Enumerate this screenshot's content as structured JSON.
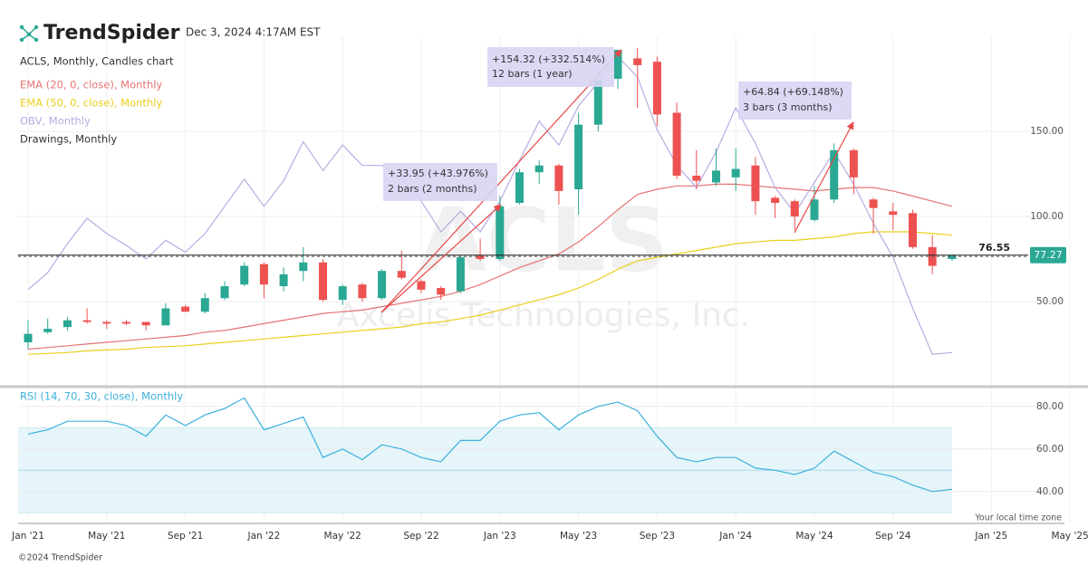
{
  "header": {
    "brand": "TrendSpider",
    "timestamp": "Dec 3, 2024 4:17AM EST"
  },
  "chart_data": [
    {
      "type": "candlestick",
      "title": "ACLS, Monthly, Candles chart",
      "watermark": "ACLS",
      "watermark_subtitle": "Axcelis Technologies, Inc.",
      "drawings_label": "Drawings, Monthly",
      "categories": [
        "Jan '21",
        null,
        null,
        null,
        "May '21",
        null,
        null,
        null,
        "Sep '21",
        null,
        null,
        null,
        "Jan '22",
        null,
        null,
        null,
        "May '22",
        null,
        null,
        null,
        "Sep '22",
        null,
        null,
        null,
        "Jan '23",
        null,
        null,
        null,
        "May '23",
        null,
        null,
        null,
        "Sep '23",
        null,
        null,
        null,
        "Jan '24",
        null,
        null,
        null,
        "May '24",
        null,
        null,
        null,
        "Sep '24",
        null,
        null,
        null
      ],
      "xticks_after": [
        "Jan '25",
        "May '25"
      ],
      "open": [
        26,
        32,
        35,
        39,
        38,
        38,
        38,
        36,
        47,
        44,
        52,
        60,
        72,
        59,
        68,
        73,
        51,
        60,
        52,
        68,
        62,
        58,
        56,
        77,
        75,
        108,
        126,
        130,
        116,
        154,
        181,
        193,
        191,
        161,
        124,
        120,
        123,
        130,
        111,
        109,
        98,
        110,
        139,
        110,
        103,
        102,
        82,
        75
      ],
      "high": [
        39,
        40,
        41,
        46,
        39,
        39,
        38,
        49,
        48,
        55,
        62,
        73,
        73,
        70,
        82,
        75,
        60,
        61,
        69,
        80,
        63,
        59,
        77,
        87,
        112,
        128,
        133,
        131,
        161,
        186,
        198,
        199,
        194,
        167,
        139,
        140,
        140,
        135,
        112,
        110,
        118,
        143,
        140,
        111,
        108,
        104,
        89,
        77.5
      ],
      "low": [
        22,
        31,
        33,
        37,
        34,
        36,
        33,
        36,
        44,
        43,
        51,
        59,
        52,
        56,
        62,
        50,
        48,
        50,
        51,
        63,
        55,
        51,
        55,
        74,
        74,
        107,
        119,
        107,
        101,
        150,
        175,
        164,
        153,
        122,
        116,
        118,
        115,
        101,
        99,
        92,
        97,
        108,
        113,
        90,
        92,
        81,
        66,
        74
      ],
      "close": [
        31,
        34,
        39,
        38,
        37,
        37,
        36,
        46,
        44,
        52,
        59,
        71,
        60,
        66,
        73,
        51,
        59,
        52,
        68,
        64,
        57,
        54,
        76,
        75,
        106,
        126,
        130,
        115,
        154,
        180,
        198,
        189,
        160,
        124,
        121,
        127,
        128,
        109,
        108,
        100,
        110,
        139,
        123,
        105,
        101,
        82,
        71,
        77.27
      ],
      "up_color": "#2aa893",
      "down_color": "#ee5151",
      "series": [
        {
          "name": "EMA (20, 0, close), Monthly",
          "color": "#e67373",
          "values": [
            22,
            23,
            24,
            25,
            26,
            27,
            28,
            29,
            30,
            32,
            33,
            35,
            37,
            39,
            41,
            43,
            44,
            45,
            47,
            49,
            51,
            53,
            56,
            60,
            65,
            70,
            74,
            78,
            85,
            94,
            104,
            113,
            116,
            118,
            118,
            119,
            119,
            118,
            117,
            116,
            115,
            116,
            117,
            117,
            115,
            112,
            109,
            106
          ]
        },
        {
          "name": "EMA (50, 0, close), Monthly",
          "color": "#e9cf1e",
          "values": [
            19,
            19.5,
            20,
            21,
            21.5,
            22,
            23,
            23.5,
            24,
            25,
            26,
            27,
            28,
            29,
            30,
            31,
            32,
            33,
            34,
            35,
            37,
            38,
            40,
            42,
            45,
            48,
            51,
            54,
            58,
            63,
            69,
            74,
            76,
            78,
            80,
            82,
            84,
            85,
            86,
            86,
            87,
            88,
            90,
            91,
            91,
            91,
            90,
            89
          ]
        },
        {
          "name": "OBV, Monthly",
          "color": "#b9abe0",
          "values": [
            57,
            67,
            84,
            99,
            90,
            83,
            75,
            86,
            79,
            90,
            106,
            122,
            106,
            121,
            144,
            127,
            142,
            130,
            130,
            123,
            109,
            91,
            103,
            91,
            109,
            133,
            156,
            142,
            165,
            179,
            194,
            182,
            151,
            130,
            117,
            138,
            164,
            143,
            117,
            102,
            120,
            138,
            119,
            96,
            76,
            46,
            19,
            20
          ]
        }
      ],
      "price_line": 76.55,
      "annotations": [
        {
          "text": "+33.95 (+43.976%)",
          "subtext": "2 bars (2 months)"
        },
        {
          "text": "+154.32 (+332.514%)",
          "subtext": "12 bars (1 year)"
        },
        {
          "text": "+64.84 (+69.148%)",
          "subtext": "3 bars (3 months)"
        }
      ],
      "ylim": [
        1,
        206
      ],
      "yticks": [
        {
          "value": 50,
          "label": "50.00"
        },
        {
          "value": 100,
          "label": "100.00"
        },
        {
          "value": 150,
          "label": "150.00"
        }
      ],
      "grid": true
    },
    {
      "type": "line",
      "title": "RSI (14, 70, 30, close), Monthly",
      "series": [
        {
          "name": "RSI",
          "color": "#3cb0dd",
          "values": [
            67,
            69,
            73,
            73,
            73,
            71,
            66,
            76,
            71,
            76,
            79,
            84,
            69,
            72,
            75,
            56,
            60,
            55,
            62,
            60,
            56,
            54,
            64,
            64,
            73,
            76,
            77,
            69,
            76,
            80,
            82,
            78,
            66,
            56,
            54,
            56,
            56,
            51,
            50,
            48,
            51,
            59,
            54,
            49,
            47,
            43,
            40,
            41
          ]
        }
      ],
      "band": [
        30,
        70
      ],
      "band_color": "#e5f5f9",
      "midline": 50,
      "ylim": [
        25,
        88
      ],
      "yticks": [
        {
          "value": 40,
          "label": "40.00"
        },
        {
          "value": 60,
          "label": "60.00"
        },
        {
          "value": 80,
          "label": "80.00"
        }
      ],
      "grid": true
    }
  ],
  "footer": {
    "copyright": "©2024 TrendSpider",
    "timezone": "Your local time zone"
  }
}
